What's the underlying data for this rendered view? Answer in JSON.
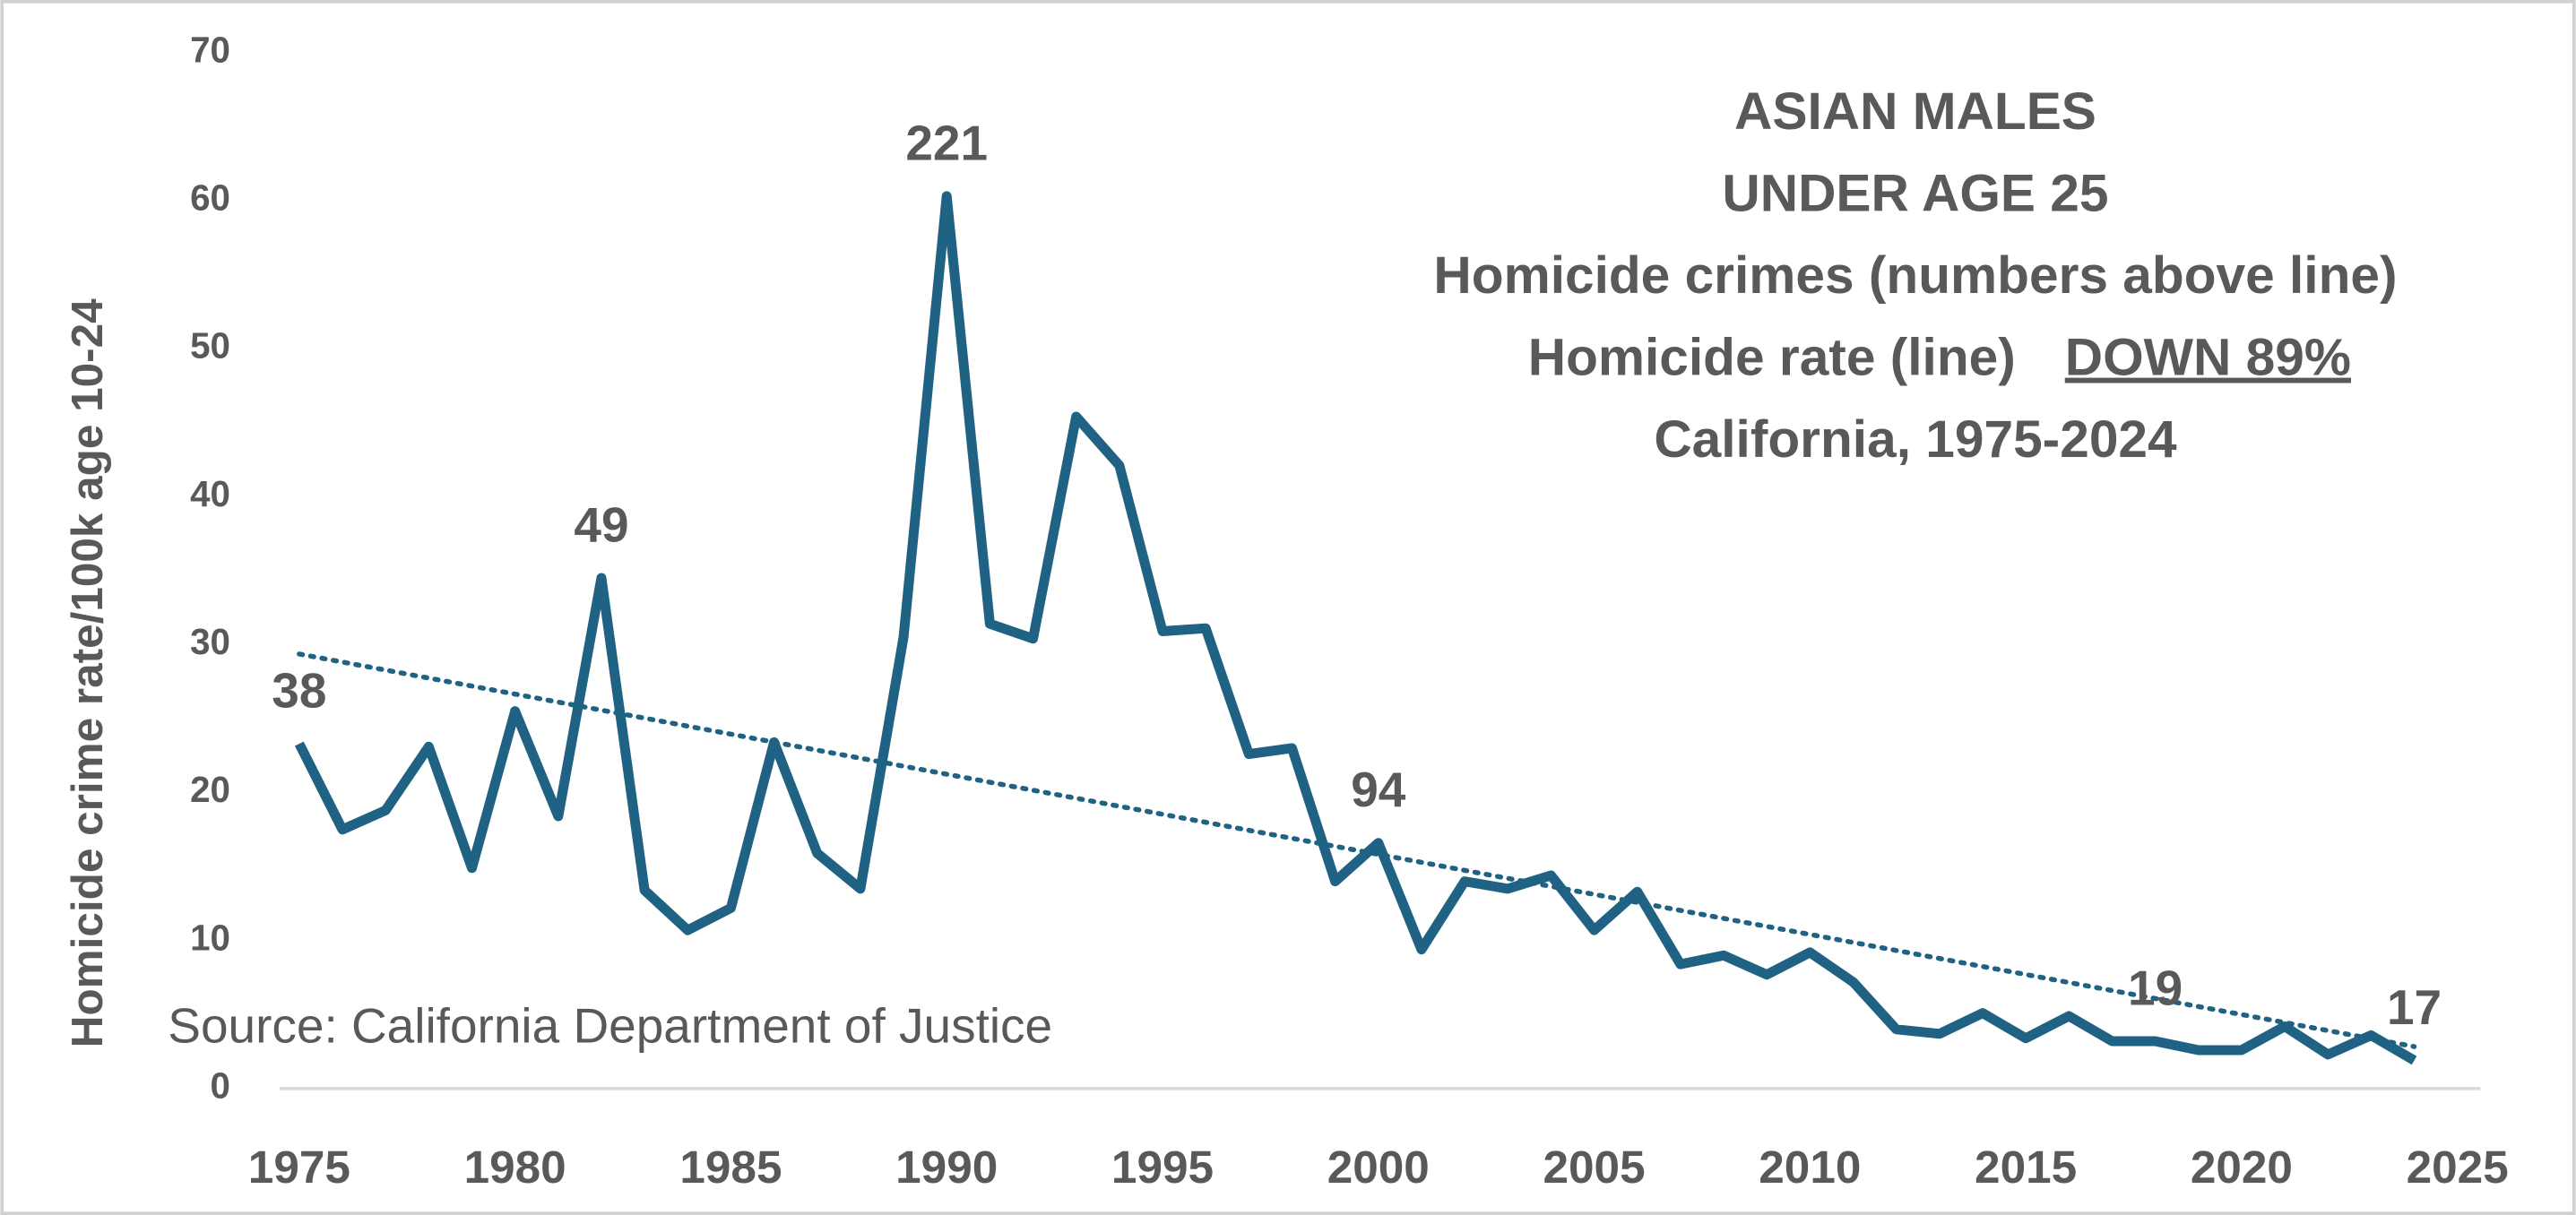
{
  "chart_data": {
    "type": "line",
    "title_lines": [
      "ASIAN MALES",
      "UNDER AGE 25",
      "Homicide crimes (numbers above line)",
      "Homicide rate (line)",
      "California, 1975-2024"
    ],
    "title_highlight": "DOWN 89%",
    "y_label": "Homicide crime rate/100k age 10-24",
    "source": "Source: California Department of Justice",
    "x": [
      1975,
      1976,
      1977,
      1978,
      1979,
      1980,
      1981,
      1982,
      1983,
      1984,
      1985,
      1986,
      1987,
      1988,
      1989,
      1990,
      1991,
      1992,
      1993,
      1994,
      1995,
      1996,
      1997,
      1998,
      1999,
      2000,
      2001,
      2002,
      2003,
      2004,
      2005,
      2006,
      2007,
      2008,
      2009,
      2010,
      2011,
      2012,
      2013,
      2014,
      2015,
      2016,
      2017,
      2018,
      2019,
      2020,
      2021,
      2022,
      2023,
      2024
    ],
    "series": [
      {
        "name": "Homicide rate",
        "color": "#1f6283",
        "values": [
          23.3,
          17.5,
          18.8,
          23.1,
          14.9,
          25.5,
          18.4,
          34.5,
          13.4,
          10.7,
          12.2,
          23.4,
          15.9,
          13.5,
          30.5,
          60.3,
          31.4,
          30.4,
          45.4,
          42.1,
          30.9,
          31.1,
          22.6,
          23.0,
          14.0,
          16.6,
          9.4,
          14.0,
          13.5,
          14.4,
          10.7,
          13.3,
          8.4,
          9.0,
          7.7,
          9.2,
          7.2,
          4.0,
          3.7,
          5.1,
          3.4,
          4.9,
          3.2,
          3.2,
          2.6,
          2.6,
          4.2,
          2.3,
          3.6,
          1.9
        ]
      }
    ],
    "trendline": {
      "type": "linear",
      "color": "#1f6283",
      "style": "dotted"
    },
    "crime_labels": [
      {
        "year": 1975,
        "count": 38
      },
      {
        "year": 1982,
        "count": 49
      },
      {
        "year": 1990,
        "count": 221
      },
      {
        "year": 2000,
        "count": 94
      },
      {
        "year": 2018,
        "count": 19
      },
      {
        "year": 2024,
        "count": 17
      }
    ],
    "xlim": [
      1975,
      2025
    ],
    "xticks": [
      1975,
      1980,
      1985,
      1990,
      1995,
      2000,
      2005,
      2010,
      2015,
      2020,
      2025
    ],
    "ylim": [
      0,
      70
    ],
    "yticks": [
      0,
      10,
      20,
      30,
      40,
      50,
      60,
      70
    ],
    "grid": false
  }
}
